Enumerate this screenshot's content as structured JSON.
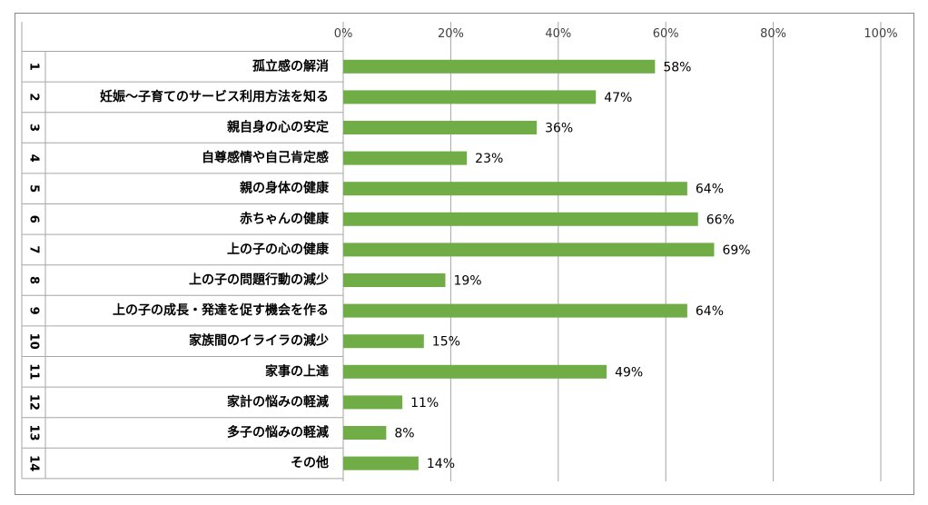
{
  "chart_data": {
    "type": "bar",
    "orientation": "horizontal",
    "x_ticks": [
      "0%",
      "20%",
      "40%",
      "60%",
      "80%",
      "100%"
    ],
    "xlim": [
      0,
      100
    ],
    "grid": true,
    "bar_color": "#70AD47",
    "rows": [
      {
        "num": "1",
        "label": "孤立感の解消",
        "value": 58,
        "value_label": "58%"
      },
      {
        "num": "2",
        "label": "妊娠〜子育てのサービス利用方法を知る",
        "value": 47,
        "value_label": "47%"
      },
      {
        "num": "3",
        "label": "親自身の心の安定",
        "value": 36,
        "value_label": "36%"
      },
      {
        "num": "4",
        "label": "自尊感情や自己肯定感",
        "value": 23,
        "value_label": "23%"
      },
      {
        "num": "5",
        "label": "親の身体の健康",
        "value": 64,
        "value_label": "64%"
      },
      {
        "num": "6",
        "label": "赤ちゃんの健康",
        "value": 66,
        "value_label": "66%"
      },
      {
        "num": "7",
        "label": "上の子の心の健康",
        "value": 69,
        "value_label": "69%"
      },
      {
        "num": "8",
        "label": "上の子の問題行動の減少",
        "value": 19,
        "value_label": "19%"
      },
      {
        "num": "9",
        "label": "上の子の成長・発達を促す機会を作る",
        "value": 64,
        "value_label": "64%"
      },
      {
        "num": "10",
        "label": "家族間のイライラの減少",
        "value": 15,
        "value_label": "15%"
      },
      {
        "num": "11",
        "label": "家事の上達",
        "value": 49,
        "value_label": "49%"
      },
      {
        "num": "12",
        "label": "家計の悩みの軽減",
        "value": 11,
        "value_label": "11%"
      },
      {
        "num": "13",
        "label": "多子の悩みの軽減",
        "value": 8,
        "value_label": "8%"
      },
      {
        "num": "14",
        "label": "その他",
        "value": 14,
        "value_label": "14%"
      }
    ]
  }
}
